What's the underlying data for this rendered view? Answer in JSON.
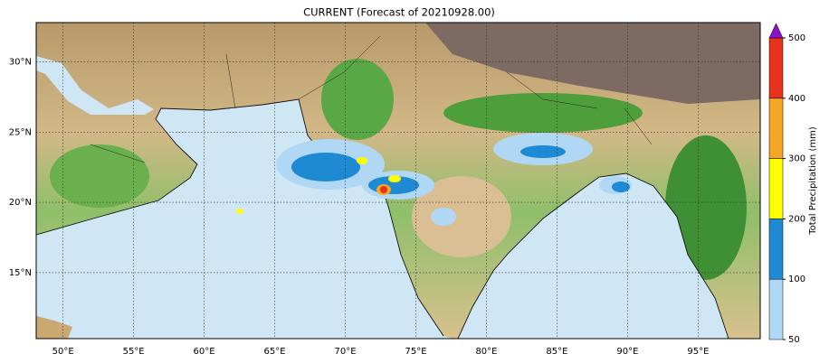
{
  "map": {
    "title": "CURRENT (Forecast of 20210928.00)",
    "lonlim": [
      48.1,
      99.4
    ],
    "latlim": [
      10.3,
      32.8
    ],
    "lon_ticks": [
      {
        "value": 50,
        "label": "50°E"
      },
      {
        "value": 55,
        "label": "55°E"
      },
      {
        "value": 60,
        "label": "60°E"
      },
      {
        "value": 65,
        "label": "65°E"
      },
      {
        "value": 70,
        "label": "70°E"
      },
      {
        "value": 75,
        "label": "75°E"
      },
      {
        "value": 80,
        "label": "80°E"
      },
      {
        "value": 85,
        "label": "85°E"
      },
      {
        "value": 90,
        "label": "90°E"
      },
      {
        "value": 95,
        "label": "95°E"
      }
    ],
    "lat_ticks": [
      {
        "value": 15,
        "label": "15°N"
      },
      {
        "value": 20,
        "label": "20°N"
      },
      {
        "value": 25,
        "label": "25°N"
      },
      {
        "value": 30,
        "label": "30°N"
      }
    ],
    "grid": true,
    "colorbar": {
      "label": "Total Precipitation (mm)",
      "ticks": [
        50,
        100,
        200,
        300,
        400,
        500
      ],
      "colors": [
        "#b0d8f5",
        "#1e8ad4",
        "#ffff00",
        "#f5a623",
        "#e8321e"
      ],
      "extend_color": "#8a12c8"
    }
  }
}
